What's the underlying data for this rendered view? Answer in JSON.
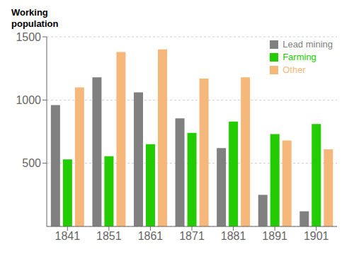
{
  "chart_data": {
    "type": "bar",
    "ylabel": "Working\npopulation",
    "categories": [
      "1841",
      "1851",
      "1861",
      "1871",
      "1881",
      "1891",
      "1901"
    ],
    "series": [
      {
        "name": "Lead mining",
        "color": "#808080",
        "values": [
          960,
          1180,
          1060,
          855,
          620,
          250,
          120
        ]
      },
      {
        "name": "Farming",
        "color": "#22cc00",
        "values": [
          530,
          555,
          650,
          740,
          830,
          730,
          810
        ]
      },
      {
        "name": "Other",
        "color": "#f5b87a",
        "values": [
          1100,
          1380,
          1400,
          1170,
          1180,
          680,
          610
        ]
      }
    ],
    "ylim": [
      0,
      1500
    ],
    "yticks": [
      500,
      1000,
      1500
    ],
    "grid": true,
    "legend": "upper right"
  }
}
